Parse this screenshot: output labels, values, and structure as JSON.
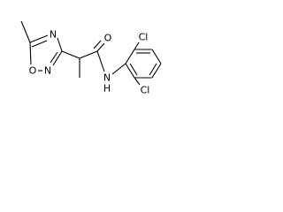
{
  "atoms": [
    {
      "label": "N"
    },
    {
      "label": "O"
    },
    {
      "label": "N"
    },
    {
      "label": "O"
    },
    {
      "label": "N"
    },
    {
      "label": "H"
    },
    {
      "label": "Cl"
    },
    {
      "label": "Cl"
    }
  ]
}
